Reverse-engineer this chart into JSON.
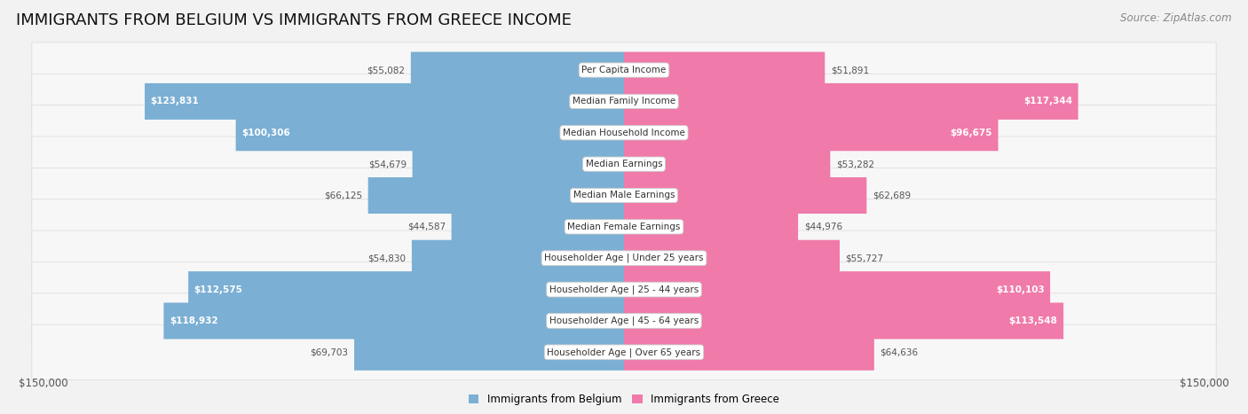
{
  "title": "IMMIGRANTS FROM BELGIUM VS IMMIGRANTS FROM GREECE INCOME",
  "source": "Source: ZipAtlas.com",
  "categories": [
    "Per Capita Income",
    "Median Family Income",
    "Median Household Income",
    "Median Earnings",
    "Median Male Earnings",
    "Median Female Earnings",
    "Householder Age | Under 25 years",
    "Householder Age | 25 - 44 years",
    "Householder Age | 45 - 64 years",
    "Householder Age | Over 65 years"
  ],
  "belgium_values": [
    55082,
    123831,
    100306,
    54679,
    66125,
    44587,
    54830,
    112575,
    118932,
    69703
  ],
  "greece_values": [
    51891,
    117344,
    96675,
    53282,
    62689,
    44976,
    55727,
    110103,
    113548,
    64636
  ],
  "belgium_color": "#7bafd4",
  "greece_color": "#f07aaa",
  "belgium_label": "Immigrants from Belgium",
  "greece_label": "Immigrants from Greece",
  "max_value": 150000,
  "fig_bg": "#f2f2f2",
  "row_bg": "#f0f0f0",
  "row_edge": "#d8d8d8",
  "title_fontsize": 13,
  "source_fontsize": 8.5,
  "bar_label_fontsize": 7.5,
  "category_fontsize": 7.5,
  "axis_label_fontsize": 8.5,
  "inside_threshold": 95000
}
